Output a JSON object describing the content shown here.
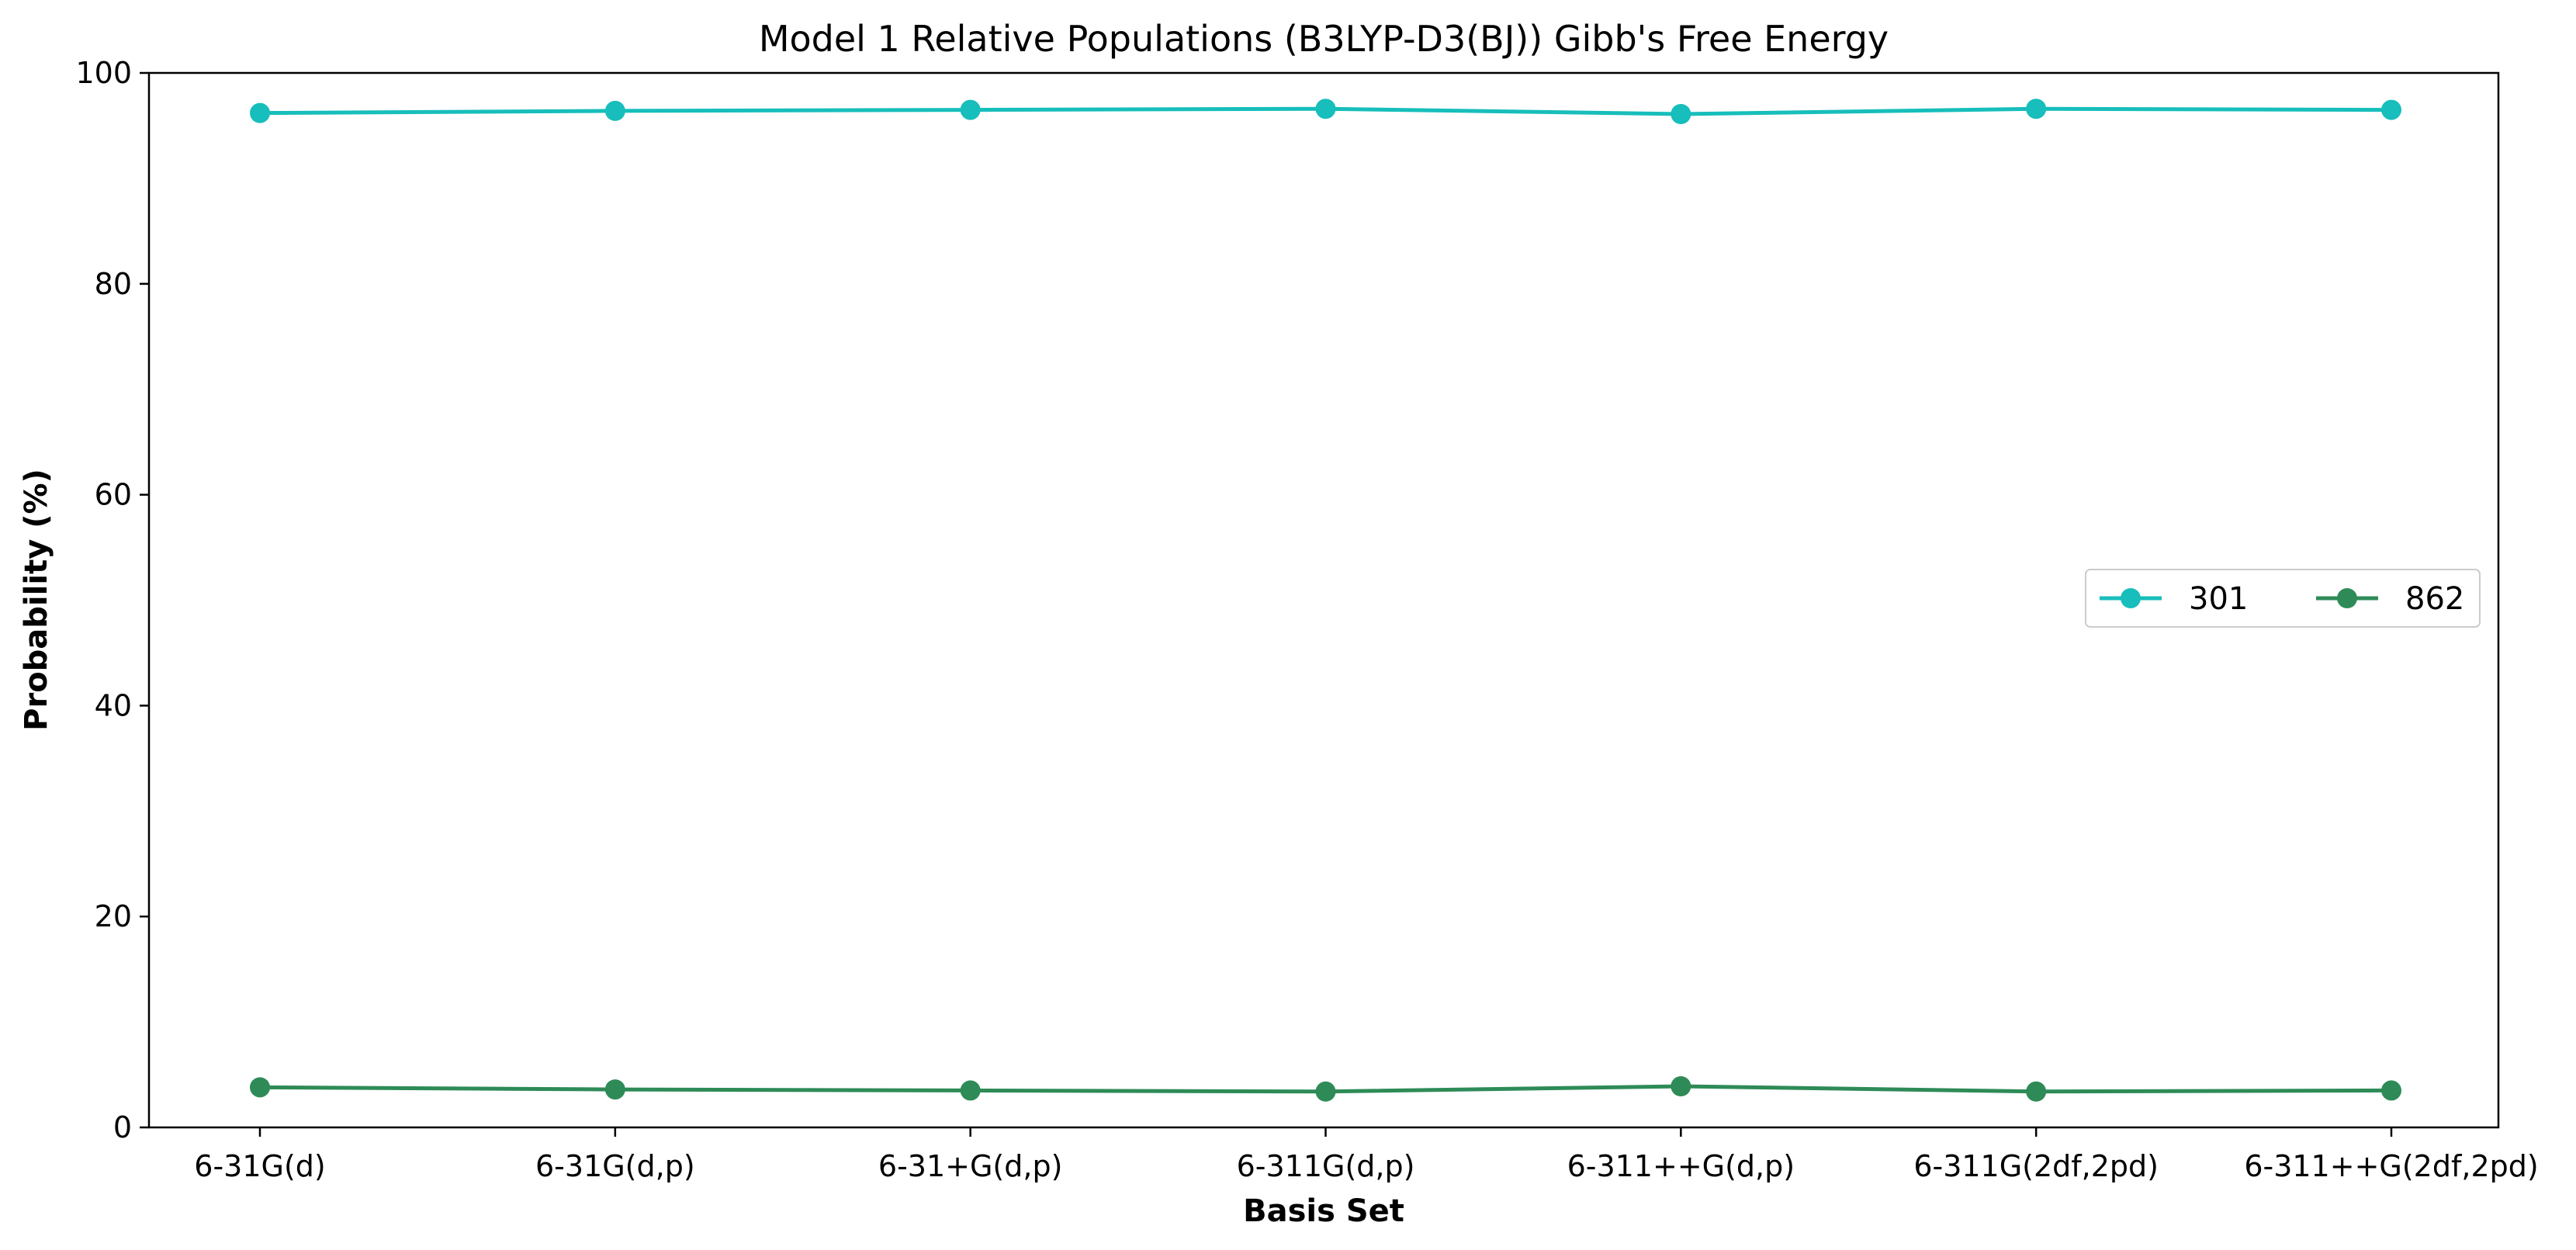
{
  "chart_data": {
    "type": "line",
    "title": "Model 1 Relative Populations (B3LYP-D3(BJ)) Gibb's Free Energy",
    "xlabel": "Basis Set",
    "ylabel": "Probability (%)",
    "categories": [
      "6-31G(d)",
      "6-31G(d,p)",
      "6-31+G(d,p)",
      "6-311G(d,p)",
      "6-311++G(d,p)",
      "6-311G(2df,2pd)",
      "6-311++G(2df,2pd)"
    ],
    "ylim": [
      0,
      100
    ],
    "yticks": [
      "0",
      "20",
      "40",
      "60",
      "80",
      "100"
    ],
    "grid": false,
    "legend_position": "center-right",
    "series": [
      {
        "name": "301",
        "color": "#17BEBB",
        "values": [
          96.2,
          96.4,
          96.5,
          96.6,
          96.1,
          96.6,
          96.5
        ]
      },
      {
        "name": "862",
        "color": "#2E8B57",
        "values": [
          3.8,
          3.6,
          3.5,
          3.4,
          3.9,
          3.4,
          3.5
        ]
      }
    ]
  }
}
